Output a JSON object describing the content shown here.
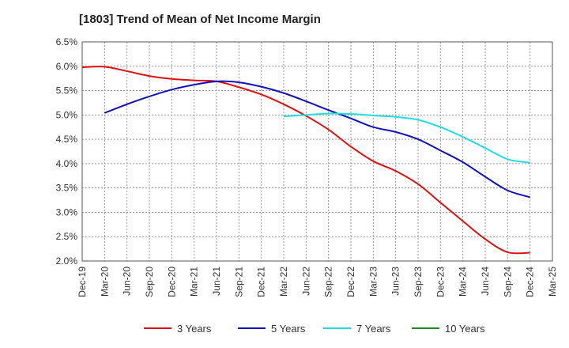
{
  "chart_data": {
    "type": "line",
    "title": "[1803]  Trend of Mean of Net Income Margin",
    "xlabel": "",
    "ylabel": "",
    "ylim": [
      2.0,
      6.5
    ],
    "y_ticks": [
      "2.0%",
      "2.5%",
      "3.0%",
      "3.5%",
      "4.0%",
      "4.5%",
      "5.0%",
      "5.5%",
      "6.0%",
      "6.5%"
    ],
    "x_ticks": [
      "Dec-19",
      "Mar-20",
      "Jun-20",
      "Sep-20",
      "Dec-20",
      "Mar-21",
      "Jun-21",
      "Sep-21",
      "Dec-21",
      "Mar-22",
      "Jun-22",
      "Sep-22",
      "Dec-22",
      "Mar-23",
      "Jun-23",
      "Sep-23",
      "Dec-23",
      "Mar-24",
      "Jun-24",
      "Sep-24",
      "Dec-24",
      "Mar-25"
    ],
    "grid": "dashed",
    "legend_position": "bottom",
    "series": [
      {
        "name": "3 Years",
        "color": "#dd1111",
        "x": [
          "Dec-19",
          "Mar-20",
          "Jun-20",
          "Sep-20",
          "Dec-20",
          "Mar-21",
          "Jun-21",
          "Sep-21",
          "Dec-21",
          "Mar-22",
          "Jun-22",
          "Sep-22",
          "Dec-22",
          "Mar-23",
          "Jun-23",
          "Sep-23",
          "Dec-23",
          "Mar-24",
          "Jun-24",
          "Sep-24",
          "Dec-24"
        ],
        "values": [
          5.98,
          5.99,
          5.9,
          5.8,
          5.74,
          5.71,
          5.69,
          5.57,
          5.42,
          5.22,
          4.98,
          4.7,
          4.35,
          4.05,
          3.85,
          3.58,
          3.2,
          2.82,
          2.45,
          2.18,
          2.17
        ]
      },
      {
        "name": "5 Years",
        "color": "#1111bb",
        "x": [
          "Mar-20",
          "Jun-20",
          "Sep-20",
          "Dec-20",
          "Mar-21",
          "Jun-21",
          "Sep-21",
          "Dec-21",
          "Mar-22",
          "Jun-22",
          "Sep-22",
          "Dec-22",
          "Mar-23",
          "Jun-23",
          "Sep-23",
          "Dec-23",
          "Mar-24",
          "Jun-24",
          "Sep-24",
          "Dec-24"
        ],
        "values": [
          5.04,
          5.22,
          5.38,
          5.52,
          5.62,
          5.69,
          5.67,
          5.58,
          5.45,
          5.28,
          5.1,
          4.93,
          4.75,
          4.65,
          4.5,
          4.27,
          4.03,
          3.73,
          3.45,
          3.31
        ]
      },
      {
        "name": "7 Years",
        "color": "#22dddd",
        "x": [
          "Mar-22",
          "Jun-22",
          "Sep-22",
          "Dec-22",
          "Mar-23",
          "Jun-23",
          "Sep-23",
          "Dec-23",
          "Mar-24",
          "Jun-24",
          "Sep-24",
          "Dec-24"
        ],
        "values": [
          4.97,
          5.0,
          5.03,
          5.02,
          4.99,
          4.96,
          4.9,
          4.75,
          4.55,
          4.32,
          4.09,
          4.02
        ]
      },
      {
        "name": "10 Years",
        "color": "#228822",
        "x": [],
        "values": []
      }
    ]
  }
}
